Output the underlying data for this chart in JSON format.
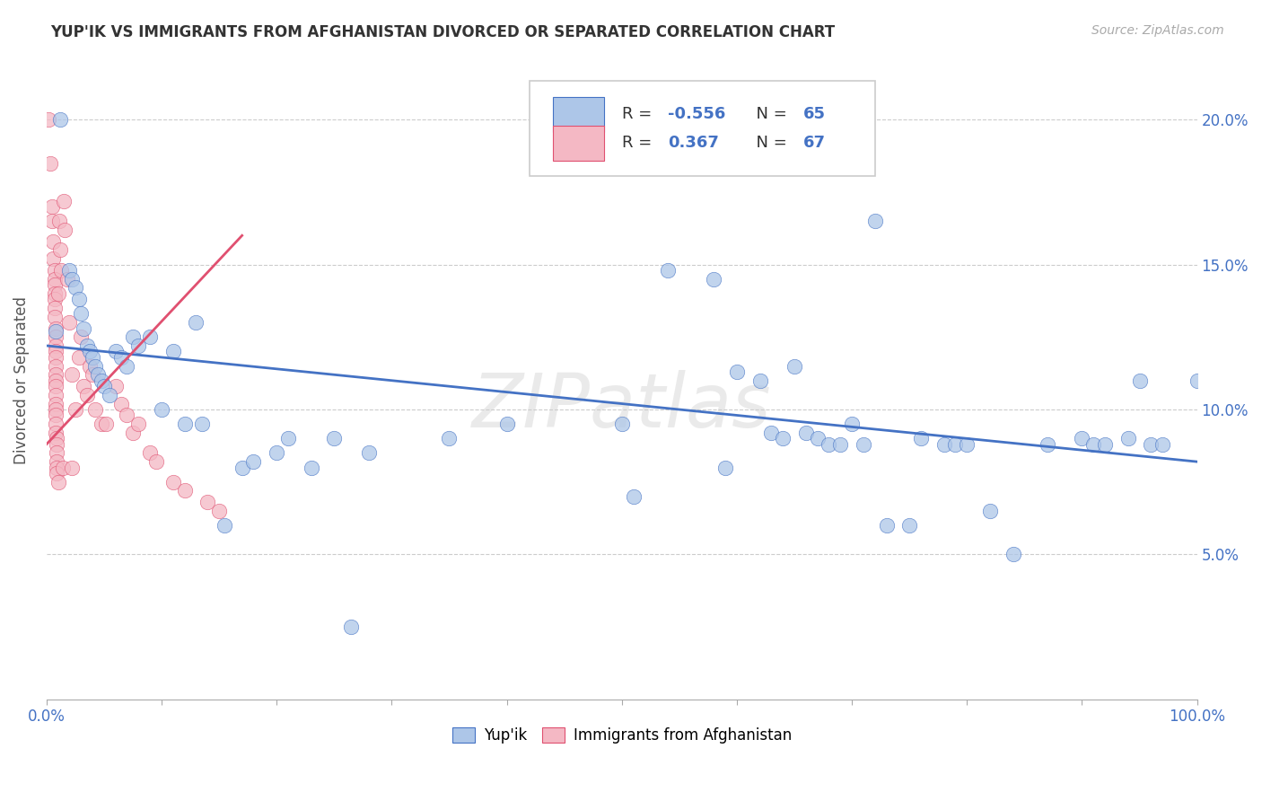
{
  "title": "YUP'IK VS IMMIGRANTS FROM AFGHANISTAN DIVORCED OR SEPARATED CORRELATION CHART",
  "source": "Source: ZipAtlas.com",
  "ylabel_label": "Divorced or Separated",
  "color_blue": "#adc6e8",
  "color_pink": "#f4b8c4",
  "line_blue": "#4472c4",
  "line_pink": "#e05070",
  "text_blue": "#4472c4",
  "watermark": "ZIPatlas",
  "blue_scatter": [
    [
      0.008,
      0.127
    ],
    [
      0.012,
      0.2
    ],
    [
      0.02,
      0.148
    ],
    [
      0.022,
      0.145
    ],
    [
      0.025,
      0.142
    ],
    [
      0.028,
      0.138
    ],
    [
      0.03,
      0.133
    ],
    [
      0.032,
      0.128
    ],
    [
      0.035,
      0.122
    ],
    [
      0.038,
      0.12
    ],
    [
      0.04,
      0.118
    ],
    [
      0.042,
      0.115
    ],
    [
      0.045,
      0.112
    ],
    [
      0.048,
      0.11
    ],
    [
      0.05,
      0.108
    ],
    [
      0.055,
      0.105
    ],
    [
      0.06,
      0.12
    ],
    [
      0.065,
      0.118
    ],
    [
      0.07,
      0.115
    ],
    [
      0.075,
      0.125
    ],
    [
      0.08,
      0.122
    ],
    [
      0.09,
      0.125
    ],
    [
      0.1,
      0.1
    ],
    [
      0.11,
      0.12
    ],
    [
      0.12,
      0.095
    ],
    [
      0.13,
      0.13
    ],
    [
      0.135,
      0.095
    ],
    [
      0.155,
      0.06
    ],
    [
      0.17,
      0.08
    ],
    [
      0.18,
      0.082
    ],
    [
      0.2,
      0.085
    ],
    [
      0.21,
      0.09
    ],
    [
      0.23,
      0.08
    ],
    [
      0.25,
      0.09
    ],
    [
      0.265,
      0.025
    ],
    [
      0.28,
      0.085
    ],
    [
      0.35,
      0.09
    ],
    [
      0.4,
      0.095
    ],
    [
      0.5,
      0.095
    ],
    [
      0.51,
      0.07
    ],
    [
      0.54,
      0.148
    ],
    [
      0.58,
      0.145
    ],
    [
      0.59,
      0.08
    ],
    [
      0.6,
      0.113
    ],
    [
      0.62,
      0.11
    ],
    [
      0.63,
      0.092
    ],
    [
      0.64,
      0.09
    ],
    [
      0.65,
      0.115
    ],
    [
      0.66,
      0.092
    ],
    [
      0.67,
      0.09
    ],
    [
      0.68,
      0.088
    ],
    [
      0.69,
      0.088
    ],
    [
      0.7,
      0.095
    ],
    [
      0.71,
      0.088
    ],
    [
      0.72,
      0.165
    ],
    [
      0.73,
      0.06
    ],
    [
      0.75,
      0.06
    ],
    [
      0.76,
      0.09
    ],
    [
      0.78,
      0.088
    ],
    [
      0.79,
      0.088
    ],
    [
      0.8,
      0.088
    ],
    [
      0.82,
      0.065
    ],
    [
      0.84,
      0.05
    ],
    [
      0.87,
      0.088
    ],
    [
      0.9,
      0.09
    ],
    [
      0.91,
      0.088
    ],
    [
      0.92,
      0.088
    ],
    [
      0.94,
      0.09
    ],
    [
      0.95,
      0.11
    ],
    [
      0.96,
      0.088
    ],
    [
      0.97,
      0.088
    ],
    [
      1.0,
      0.11
    ]
  ],
  "pink_scatter": [
    [
      0.002,
      0.2
    ],
    [
      0.003,
      0.185
    ],
    [
      0.005,
      0.17
    ],
    [
      0.005,
      0.165
    ],
    [
      0.006,
      0.158
    ],
    [
      0.006,
      0.152
    ],
    [
      0.007,
      0.148
    ],
    [
      0.007,
      0.145
    ],
    [
      0.007,
      0.143
    ],
    [
      0.007,
      0.14
    ],
    [
      0.007,
      0.138
    ],
    [
      0.007,
      0.135
    ],
    [
      0.007,
      0.132
    ],
    [
      0.008,
      0.128
    ],
    [
      0.008,
      0.125
    ],
    [
      0.008,
      0.122
    ],
    [
      0.008,
      0.12
    ],
    [
      0.008,
      0.118
    ],
    [
      0.008,
      0.115
    ],
    [
      0.008,
      0.112
    ],
    [
      0.008,
      0.11
    ],
    [
      0.008,
      0.108
    ],
    [
      0.008,
      0.105
    ],
    [
      0.008,
      0.102
    ],
    [
      0.008,
      0.1
    ],
    [
      0.008,
      0.098
    ],
    [
      0.008,
      0.095
    ],
    [
      0.008,
      0.092
    ],
    [
      0.009,
      0.09
    ],
    [
      0.009,
      0.088
    ],
    [
      0.009,
      0.085
    ],
    [
      0.009,
      0.082
    ],
    [
      0.009,
      0.08
    ],
    [
      0.009,
      0.078
    ],
    [
      0.01,
      0.075
    ],
    [
      0.01,
      0.14
    ],
    [
      0.011,
      0.165
    ],
    [
      0.012,
      0.155
    ],
    [
      0.013,
      0.148
    ],
    [
      0.014,
      0.08
    ],
    [
      0.015,
      0.172
    ],
    [
      0.016,
      0.162
    ],
    [
      0.018,
      0.145
    ],
    [
      0.02,
      0.13
    ],
    [
      0.022,
      0.112
    ],
    [
      0.022,
      0.08
    ],
    [
      0.025,
      0.1
    ],
    [
      0.028,
      0.118
    ],
    [
      0.03,
      0.125
    ],
    [
      0.032,
      0.108
    ],
    [
      0.035,
      0.105
    ],
    [
      0.038,
      0.115
    ],
    [
      0.04,
      0.112
    ],
    [
      0.042,
      0.1
    ],
    [
      0.048,
      0.095
    ],
    [
      0.052,
      0.095
    ],
    [
      0.06,
      0.108
    ],
    [
      0.065,
      0.102
    ],
    [
      0.07,
      0.098
    ],
    [
      0.075,
      0.092
    ],
    [
      0.08,
      0.095
    ],
    [
      0.09,
      0.085
    ],
    [
      0.095,
      0.082
    ],
    [
      0.11,
      0.075
    ],
    [
      0.12,
      0.072
    ],
    [
      0.14,
      0.068
    ],
    [
      0.15,
      0.065
    ]
  ],
  "xlim": [
    0.0,
    1.0
  ],
  "ylim": [
    0.0,
    0.22
  ],
  "ytick_vals": [
    0.05,
    0.1,
    0.15,
    0.2
  ],
  "ytick_labels": [
    "5.0%",
    "10.0%",
    "15.0%",
    "20.0%"
  ],
  "blue_line_x": [
    0.0,
    1.0
  ],
  "blue_line_y": [
    0.122,
    0.082
  ],
  "pink_line_x": [
    0.0,
    0.17
  ],
  "pink_line_y": [
    0.088,
    0.16
  ]
}
